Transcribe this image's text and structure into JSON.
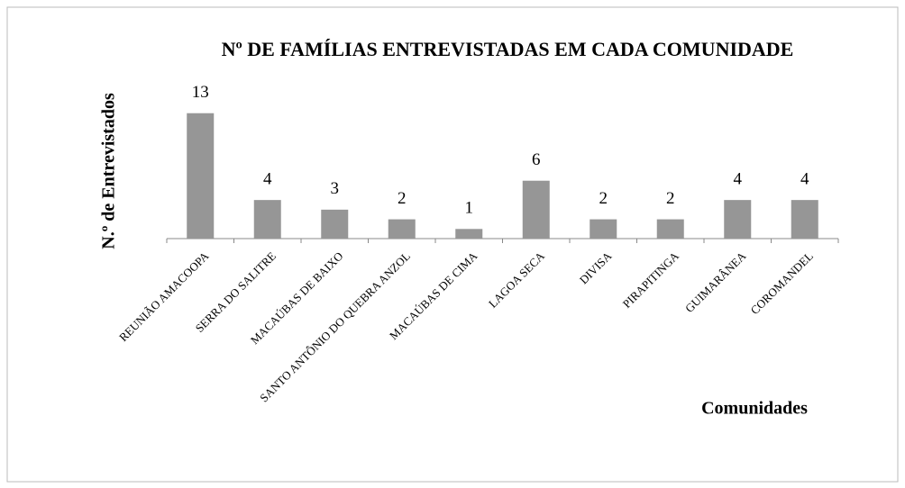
{
  "chart_data": {
    "type": "bar",
    "title": "Nº DE FAMÍLIAS ENTREVISTADAS EM CADA COMUNIDADE",
    "x_label": "Comunidades",
    "y_label": "N.º de Entrevistados",
    "categories": [
      "REUNIÃO AMACOOPA",
      "SERRA DO SALITRE",
      "MACAÚBAS DE BAIXO",
      "SANTO ANTÔNIO DO QUEBRA ANZOL",
      "MACAÚBAS DE CIMA",
      "LAGOA SECA",
      "DIVISA",
      "PIRAPITINGA",
      "GUIMARÂNEA",
      "COROMANDEL"
    ],
    "values": [
      13,
      4,
      3,
      2,
      1,
      6,
      2,
      2,
      4,
      4
    ],
    "color": "#969696",
    "ylim": [
      0,
      14
    ]
  }
}
